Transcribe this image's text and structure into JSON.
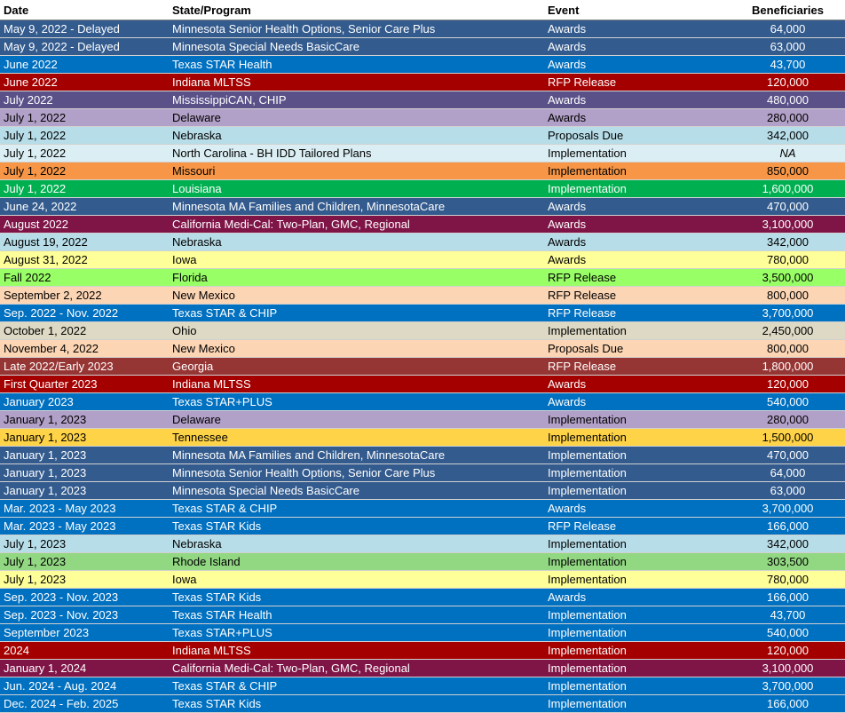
{
  "table": {
    "headers": [
      "Date",
      "State/Program",
      "Event",
      "Beneficiaries"
    ],
    "rows": [
      {
        "date": "May 9, 2022 - Delayed",
        "program": "Minnesota Senior Health Options, Senior Care Plus",
        "event": "Awards",
        "beneficiaries": "64,000",
        "bg": "#335b8e",
        "fg": "#ffffff"
      },
      {
        "date": "May 9, 2022 - Delayed",
        "program": "Minnesota Special Needs BasicCare",
        "event": "Awards",
        "beneficiaries": "63,000",
        "bg": "#335b8e",
        "fg": "#ffffff"
      },
      {
        "date": "June 2022",
        "program": "Texas STAR Health",
        "event": "Awards",
        "beneficiaries": "43,700",
        "bg": "#0070c0",
        "fg": "#ffffff"
      },
      {
        "date": "June 2022",
        "program": "Indiana MLTSS",
        "event": "RFP Release",
        "beneficiaries": "120,000",
        "bg": "#a50000",
        "fg": "#ffffff"
      },
      {
        "date": "July 2022",
        "program": "MississippiCAN, CHIP",
        "event": "Awards",
        "beneficiaries": "480,000",
        "bg": "#5a5188",
        "fg": "#ffffff"
      },
      {
        "date": "July 1, 2022",
        "program": "Delaware",
        "event": "Awards",
        "beneficiaries": "280,000",
        "bg": "#b1a0c7",
        "fg": "#000000"
      },
      {
        "date": "July 1, 2022",
        "program": "Nebraska",
        "event": "Proposals Due",
        "beneficiaries": "342,000",
        "bg": "#b7dde8",
        "fg": "#000000"
      },
      {
        "date": "July 1, 2022",
        "program": "North Carolina -  BH IDD Tailored Plans",
        "event": "Implementation",
        "beneficiaries": "NA",
        "bg": "#dbeef3",
        "fg": "#000000"
      },
      {
        "date": "July 1, 2022",
        "program": "Missouri",
        "event": "Implementation",
        "beneficiaries": "850,000",
        "bg": "#f79646",
        "fg": "#000000"
      },
      {
        "date": "July 1, 2022",
        "program": "Louisiana",
        "event": "Implementation",
        "beneficiaries": "1,600,000",
        "bg": "#00b050",
        "fg": "#ffffff"
      },
      {
        "date": "June 24, 2022",
        "program": "Minnesota MA Families and Children, MinnesotaCare",
        "event": "Awards",
        "beneficiaries": "470,000",
        "bg": "#335b8e",
        "fg": "#ffffff"
      },
      {
        "date": "August 2022",
        "program": "California Medi-Cal: Two-Plan, GMC, Regional",
        "event": "Awards",
        "beneficiaries": "3,100,000",
        "bg": "#7f1447",
        "fg": "#ffffff"
      },
      {
        "date": "August 19, 2022",
        "program": "Nebraska",
        "event": "Awards",
        "beneficiaries": "342,000",
        "bg": "#b7dde8",
        "fg": "#000000"
      },
      {
        "date": "August 31, 2022",
        "program": "Iowa",
        "event": "Awards",
        "beneficiaries": "780,000",
        "bg": "#ffff99",
        "fg": "#000000"
      },
      {
        "date": "Fall 2022",
        "program": "Florida",
        "event": "RFP Release",
        "beneficiaries": "3,500,000",
        "bg": "#99ff66",
        "fg": "#000000"
      },
      {
        "date": "September 2, 2022",
        "program": "New Mexico",
        "event": "RFP Release",
        "beneficiaries": "800,000",
        "bg": "#fcd5b4",
        "fg": "#000000"
      },
      {
        "date": "Sep. 2022 - Nov. 2022",
        "program": "Texas STAR & CHIP",
        "event": "RFP Release",
        "beneficiaries": "3,700,000",
        "bg": "#0070c0",
        "fg": "#ffffff"
      },
      {
        "date": "October 1, 2022",
        "program": "Ohio",
        "event": "Implementation",
        "beneficiaries": "2,450,000",
        "bg": "#ddd9c4",
        "fg": "#000000"
      },
      {
        "date": "November 4, 2022",
        "program": "New Mexico",
        "event": "Proposals Due",
        "beneficiaries": "800,000",
        "bg": "#fcd5b4",
        "fg": "#000000"
      },
      {
        "date": "Late 2022/Early 2023",
        "program": "Georgia",
        "event": "RFP Release",
        "beneficiaries": "1,800,000",
        "bg": "#963634",
        "fg": "#ffffff"
      },
      {
        "date": "First Quarter 2023",
        "program": "Indiana MLTSS",
        "event": "Awards",
        "beneficiaries": "120,000",
        "bg": "#a50000",
        "fg": "#ffffff"
      },
      {
        "date": "January 2023",
        "program": "Texas STAR+PLUS",
        "event": "Awards",
        "beneficiaries": "540,000",
        "bg": "#0070c0",
        "fg": "#ffffff"
      },
      {
        "date": "January 1, 2023",
        "program": "Delaware",
        "event": "Implementation",
        "beneficiaries": "280,000",
        "bg": "#b1a0c7",
        "fg": "#000000"
      },
      {
        "date": "January 1, 2023",
        "program": "Tennessee",
        "event": "Implementation",
        "beneficiaries": "1,500,000",
        "bg": "#ffd347",
        "fg": "#000000"
      },
      {
        "date": "January 1, 2023",
        "program": "Minnesota MA Families and Children, MinnesotaCare",
        "event": "Implementation",
        "beneficiaries": "470,000",
        "bg": "#335b8e",
        "fg": "#ffffff"
      },
      {
        "date": "January 1, 2023",
        "program": "Minnesota Senior Health Options, Senior Care Plus",
        "event": "Implementation",
        "beneficiaries": "64,000",
        "bg": "#335b8e",
        "fg": "#ffffff"
      },
      {
        "date": "January 1, 2023",
        "program": "Minnesota Special Needs BasicCare",
        "event": "Implementation",
        "beneficiaries": "63,000",
        "bg": "#335b8e",
        "fg": "#ffffff"
      },
      {
        "date": "Mar. 2023 - May 2023",
        "program": "Texas STAR & CHIP",
        "event": "Awards",
        "beneficiaries": "3,700,000",
        "bg": "#0070c0",
        "fg": "#ffffff"
      },
      {
        "date": "Mar. 2023 - May 2023",
        "program": "Texas STAR Kids",
        "event": "RFP Release",
        "beneficiaries": "166,000",
        "bg": "#0070c0",
        "fg": "#ffffff"
      },
      {
        "date": "July 1, 2023",
        "program": "Nebraska",
        "event": "Implementation",
        "beneficiaries": "342,000",
        "bg": "#b7dde8",
        "fg": "#000000"
      },
      {
        "date": "July 1, 2023",
        "program": "Rhode Island",
        "event": "Implementation",
        "beneficiaries": "303,500",
        "bg": "#92d883",
        "fg": "#000000"
      },
      {
        "date": "July 1, 2023",
        "program": "Iowa",
        "event": "Implementation",
        "beneficiaries": "780,000",
        "bg": "#ffff99",
        "fg": "#000000"
      },
      {
        "date": "Sep. 2023 - Nov. 2023",
        "program": "Texas STAR Kids",
        "event": "Awards",
        "beneficiaries": "166,000",
        "bg": "#0070c0",
        "fg": "#ffffff"
      },
      {
        "date": "Sep. 2023 - Nov. 2023",
        "program": "Texas STAR Health",
        "event": "Implementation",
        "beneficiaries": "43,700",
        "bg": "#0070c0",
        "fg": "#ffffff"
      },
      {
        "date": "September 2023",
        "program": "Texas STAR+PLUS",
        "event": "Implementation",
        "beneficiaries": "540,000",
        "bg": "#0070c0",
        "fg": "#ffffff"
      },
      {
        "date": "2024",
        "program": "Indiana MLTSS",
        "event": "Implementation",
        "beneficiaries": "120,000",
        "bg": "#a50000",
        "fg": "#ffffff"
      },
      {
        "date": "January 1, 2024",
        "program": "California Medi-Cal: Two-Plan, GMC, Regional",
        "event": "Implementation",
        "beneficiaries": "3,100,000",
        "bg": "#7f1447",
        "fg": "#ffffff"
      },
      {
        "date": "Jun. 2024 - Aug. 2024",
        "program": "Texas STAR & CHIP",
        "event": "Implementation",
        "beneficiaries": "3,700,000",
        "bg": "#0070c0",
        "fg": "#ffffff"
      },
      {
        "date": "Dec. 2024 - Feb. 2025",
        "program": "Texas STAR Kids",
        "event": "Implementation",
        "beneficiaries": "166,000",
        "bg": "#0070c0",
        "fg": "#ffffff"
      }
    ]
  }
}
